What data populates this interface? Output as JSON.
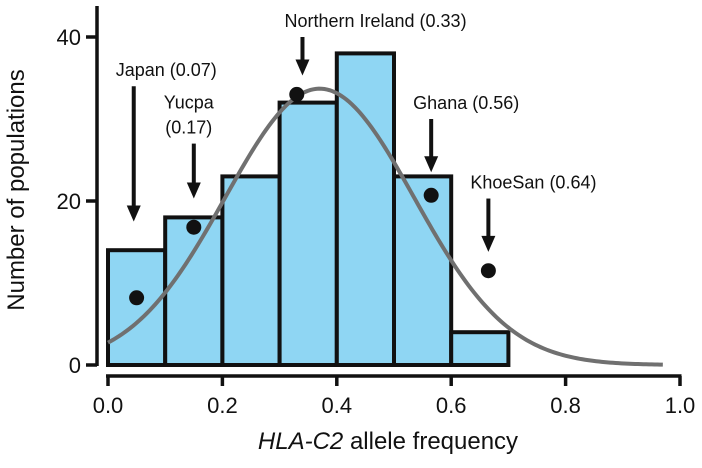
{
  "chart_data": {
    "type": "bar",
    "subtype": "histogram",
    "bin_edges": [
      0.0,
      0.1,
      0.2,
      0.3,
      0.4,
      0.5,
      0.6,
      0.7
    ],
    "values": [
      14,
      18,
      23,
      32,
      38,
      23,
      4
    ],
    "xlim": [
      0.0,
      1.0
    ],
    "ylim": [
      0,
      45
    ],
    "x_ticks": [
      0.0,
      0.2,
      0.4,
      0.6,
      0.8,
      1.0
    ],
    "x_tick_labels": [
      "0.0",
      "0.2",
      "0.4",
      "0.6",
      "0.8",
      "1.0"
    ],
    "y_ticks": [
      0,
      20,
      40
    ],
    "y_tick_labels": [
      "0",
      "20",
      "40"
    ],
    "xlabel_italic": "HLA-C2",
    "xlabel_rest": " allele frequency",
    "ylabel": "Number of populations",
    "grid": false,
    "bar_color": "#8fd6f3",
    "bar_edge_color": "#111111",
    "curve": {
      "type": "normal-fit",
      "mean": 0.37,
      "sd": 0.165,
      "peak": 33.7,
      "x_range": [
        0.0,
        0.97
      ],
      "color": "#707070"
    },
    "points": [
      {
        "x": 0.05,
        "y": 8.2
      },
      {
        "x": 0.15,
        "y": 16.8
      },
      {
        "x": 0.33,
        "y": 33.0
      },
      {
        "x": 0.565,
        "y": 20.7
      },
      {
        "x": 0.665,
        "y": 11.5
      }
    ],
    "annotations": [
      {
        "lines": [
          "Japan (0.07)"
        ],
        "x": 0.045,
        "y_top": 34,
        "y_bottom": 17.5
      },
      {
        "lines": [
          "Yucpa",
          "(0.17)"
        ],
        "x": 0.15,
        "y_top": 27,
        "y_bottom": 20.3
      },
      {
        "lines": [
          "Northern Ireland (0.33)"
        ],
        "x": 0.34,
        "y_top": 40,
        "y_bottom": 35.3
      },
      {
        "lines": [
          "Ghana (0.56)"
        ],
        "x": 0.565,
        "y_top": 30,
        "y_bottom": 23.5
      },
      {
        "lines": [
          "KhoeSan (0.64)"
        ],
        "x": 0.665,
        "y_top": 20.3,
        "y_bottom": 13.8
      }
    ]
  }
}
